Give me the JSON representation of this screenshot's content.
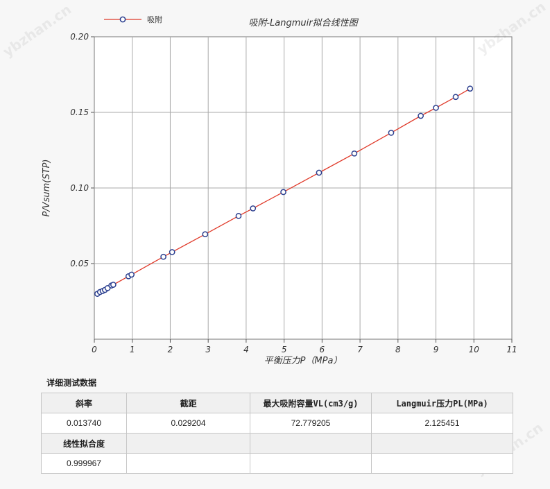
{
  "watermark": "ybzhan.cn",
  "chart_data": {
    "type": "scatter",
    "title": "吸附-Langmuir拟合线性图",
    "xlabel": "平衡压力P（MPa）",
    "ylabel": "P/Vsum(STP)",
    "xlim": [
      0,
      11
    ],
    "ylim": [
      0,
      0.2
    ],
    "x_ticks": [
      "0",
      "1",
      "2",
      "3",
      "4",
      "5",
      "6",
      "7",
      "8",
      "9",
      "10",
      "11"
    ],
    "y_ticks": [
      "0.05",
      "0.10",
      "0.15",
      "0.20"
    ],
    "grid": true,
    "legend_position": "top-left",
    "line_color": "#e03a2a",
    "marker_color": "#2b3f8f",
    "series": [
      {
        "name": "吸附",
        "x": [
          0.08,
          0.15,
          0.22,
          0.28,
          0.35,
          0.45,
          0.5,
          0.9,
          0.98,
          1.82,
          2.05,
          2.92,
          3.8,
          4.18,
          4.98,
          5.92,
          6.85,
          7.82,
          8.6,
          9.0,
          9.52,
          9.9
        ],
        "y": [
          0.03,
          0.0312,
          0.0319,
          0.0326,
          0.0338,
          0.0355,
          0.036,
          0.0416,
          0.0427,
          0.0545,
          0.0576,
          0.0694,
          0.0815,
          0.0865,
          0.0973,
          0.1101,
          0.1228,
          0.1365,
          0.1477,
          0.153,
          0.1602,
          0.1657
        ]
      }
    ]
  },
  "details": {
    "title": "详细测试数据",
    "headers1": [
      "斜率",
      "截距",
      "最大吸附容量VL(cm3/g)",
      "Langmuir压力PL(MPa)"
    ],
    "values1": [
      "0.013740",
      "0.029204",
      "72.779205",
      "2.125451"
    ],
    "headers2": [
      "线性拟合度",
      "",
      "",
      ""
    ],
    "values2": [
      "0.999967",
      "",
      "",
      ""
    ]
  }
}
